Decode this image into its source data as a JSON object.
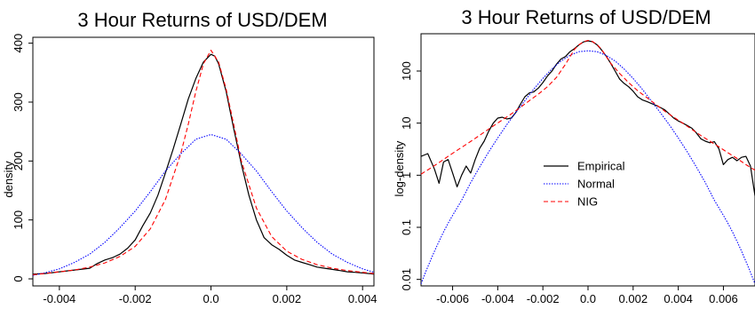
{
  "colors": {
    "empirical": "#000000",
    "normal": "#0000ff",
    "nig": "#ff0000"
  },
  "chart_data": [
    {
      "type": "line",
      "title": "3 Hour Returns of USD/DEM",
      "xlabel": "",
      "ylabel": "density",
      "xlim": [
        -0.0047,
        0.0043
      ],
      "ylim": [
        -12,
        410
      ],
      "x_ticks": [
        -0.004,
        -0.002,
        0.0,
        0.002,
        0.004
      ],
      "x_tick_labels": [
        "-0.004",
        "-0.002",
        "0.0",
        "0.002",
        "0.004"
      ],
      "y_ticks": [
        0,
        100,
        200,
        300,
        400
      ],
      "y_tick_labels": [
        "0",
        "100",
        "200",
        "300",
        "400"
      ],
      "grid": false,
      "legend": null,
      "series": [
        {
          "key": "empirical",
          "style": "solid",
          "x": [
            -0.0047,
            -0.0044,
            -0.004,
            -0.0036,
            -0.0032,
            -0.003,
            -0.0028,
            -0.0026,
            -0.0024,
            -0.0022,
            -0.002,
            -0.0018,
            -0.0016,
            -0.0014,
            -0.0012,
            -0.001,
            -0.0008,
            -0.0006,
            -0.0004,
            -0.0002,
            0.0,
            0.0001,
            0.0002,
            0.0004,
            0.0006,
            0.0008,
            0.001,
            0.0012,
            0.0014,
            0.0016,
            0.0018,
            0.002,
            0.0022,
            0.0024,
            0.0026,
            0.0028,
            0.003,
            0.0032,
            0.0034,
            0.0036,
            0.0038,
            0.004,
            0.0043
          ],
          "y": [
            8,
            9,
            12,
            15,
            18,
            26,
            32,
            36,
            42,
            52,
            66,
            90,
            112,
            142,
            180,
            220,
            262,
            305,
            340,
            368,
            381,
            378,
            365,
            318,
            255,
            195,
            142,
            100,
            70,
            58,
            50,
            40,
            32,
            28,
            24,
            20,
            18,
            16,
            14,
            12,
            11,
            10,
            8
          ]
        },
        {
          "key": "normal",
          "style": "dotted",
          "x": [
            -0.0047,
            -0.0044,
            -0.004,
            -0.0036,
            -0.0032,
            -0.0028,
            -0.0024,
            -0.002,
            -0.0016,
            -0.0012,
            -0.0008,
            -0.0004,
            0.0,
            0.0004,
            0.0008,
            0.0012,
            0.0016,
            0.002,
            0.0024,
            0.0028,
            0.0032,
            0.0036,
            0.004,
            0.0043
          ],
          "y": [
            6,
            10,
            17,
            28,
            42,
            62,
            87,
            115,
            148,
            183,
            212,
            237,
            245,
            237,
            212,
            183,
            148,
            115,
            87,
            62,
            42,
            28,
            17,
            11
          ]
        },
        {
          "key": "nig",
          "style": "dashed",
          "x": [
            -0.0047,
            -0.0044,
            -0.004,
            -0.0036,
            -0.0032,
            -0.0028,
            -0.0024,
            -0.002,
            -0.0016,
            -0.0012,
            -0.0008,
            -0.0006,
            -0.0004,
            -0.0002,
            0.0,
            0.0002,
            0.0004,
            0.0006,
            0.0008,
            0.0012,
            0.0016,
            0.002,
            0.0024,
            0.0028,
            0.0032,
            0.0036,
            0.004,
            0.0043
          ],
          "y": [
            7,
            9,
            12,
            15,
            20,
            27,
            38,
            55,
            85,
            135,
            212,
            262,
            318,
            365,
            388,
            368,
            322,
            262,
            200,
            120,
            72,
            47,
            33,
            24,
            18,
            14,
            11,
            9
          ]
        }
      ]
    },
    {
      "type": "line",
      "title": "3 Hour Returns of USD/DEM",
      "xlabel": "",
      "ylabel": "log-density",
      "y_scale": "log",
      "xlim": [
        -0.0074,
        0.0074
      ],
      "ylim": [
        0.0075,
        520
      ],
      "x_ticks": [
        -0.006,
        -0.004,
        -0.002,
        0.0,
        0.002,
        0.004,
        0.006
      ],
      "x_tick_labels": [
        "-0.006",
        "-0.004",
        "-0.002",
        "0.0",
        "0.002",
        "0.004",
        "0.006"
      ],
      "y_ticks": [
        0.01,
        0.1,
        1,
        10,
        100
      ],
      "y_tick_labels": [
        "0.01",
        "0.1",
        "1",
        "10",
        "100"
      ],
      "grid": false,
      "legend": "center-right",
      "series": [
        {
          "key": "empirical",
          "name": "Empirical",
          "style": "solid",
          "x": [
            -0.0074,
            -0.0071,
            -0.0068,
            -0.0066,
            -0.0064,
            -0.0062,
            -0.006,
            -0.0058,
            -0.0056,
            -0.0054,
            -0.0052,
            -0.005,
            -0.0048,
            -0.0046,
            -0.0044,
            -0.0042,
            -0.004,
            -0.0038,
            -0.0036,
            -0.0034,
            -0.0032,
            -0.003,
            -0.0028,
            -0.0026,
            -0.0024,
            -0.0022,
            -0.002,
            -0.0018,
            -0.0016,
            -0.0014,
            -0.0012,
            -0.001,
            -0.0008,
            -0.0006,
            -0.0004,
            -0.0002,
            0.0,
            0.0002,
            0.0004,
            0.0006,
            0.0008,
            0.001,
            0.0012,
            0.0014,
            0.0016,
            0.0018,
            0.002,
            0.0022,
            0.0024,
            0.0026,
            0.0028,
            0.003,
            0.0032,
            0.0034,
            0.0036,
            0.0038,
            0.004,
            0.0042,
            0.0044,
            0.0046,
            0.0048,
            0.005,
            0.0052,
            0.0054,
            0.0056,
            0.0058,
            0.006,
            0.0062,
            0.0064,
            0.0066,
            0.0068,
            0.007,
            0.0072,
            0.0074
          ],
          "y": [
            2.3,
            2.6,
            1.3,
            0.7,
            1.8,
            2.0,
            1.1,
            0.6,
            1.0,
            1.5,
            1.1,
            2.0,
            3.3,
            4.5,
            7.0,
            10.0,
            12.5,
            13.0,
            12.0,
            12.5,
            16.0,
            23.0,
            32.0,
            38.0,
            40.0,
            47.0,
            60.0,
            80.0,
            100.0,
            135.0,
            170.0,
            190.0,
            235.0,
            270.0,
            318.0,
            362.0,
            380.0,
            365.0,
            318.0,
            255.0,
            195.0,
            142.0,
            100.0,
            70.0,
            58.0,
            50.0,
            41.0,
            32.0,
            28.0,
            26.0,
            24.0,
            22.0,
            20.0,
            18.0,
            15.0,
            12.5,
            11.0,
            10.0,
            9.0,
            8.0,
            6.5,
            5.0,
            4.5,
            4.2,
            4.4,
            3.2,
            1.6,
            2.0,
            2.2,
            1.9,
            2.2,
            2.3,
            1.5,
            0.4
          ]
        },
        {
          "key": "normal",
          "name": "Normal",
          "style": "dotted",
          "x": [
            -0.0074,
            -0.0072,
            -0.007,
            -0.0068,
            -0.0066,
            -0.0064,
            -0.0062,
            -0.006,
            -0.0056,
            -0.0052,
            -0.0048,
            -0.0044,
            -0.004,
            -0.0036,
            -0.0032,
            -0.0028,
            -0.0024,
            -0.002,
            -0.0016,
            -0.0012,
            -0.0008,
            -0.0004,
            0.0,
            0.0004,
            0.0008,
            0.0012,
            0.0016,
            0.002,
            0.0024,
            0.0028,
            0.0032,
            0.0036,
            0.004,
            0.0044,
            0.0048,
            0.0052,
            0.0056,
            0.006,
            0.0062,
            0.0064,
            0.0066,
            0.0068,
            0.007,
            0.0072,
            0.0074
          ],
          "y": [
            0.0082,
            0.0137,
            0.0222,
            0.035,
            0.054,
            0.082,
            0.12,
            0.17,
            0.33,
            0.72,
            1.45,
            2.8,
            5.2,
            9.3,
            16.0,
            27.0,
            45.0,
            72.0,
            110.0,
            156.0,
            200.0,
            235.0,
            245.0,
            235.0,
            200.0,
            156.0,
            110.0,
            72.0,
            45.0,
            27.0,
            16.0,
            9.3,
            5.2,
            2.8,
            1.45,
            0.72,
            0.33,
            0.17,
            0.12,
            0.082,
            0.054,
            0.035,
            0.0222,
            0.0137,
            0.0082
          ]
        },
        {
          "key": "nig",
          "name": "NIG",
          "style": "dashed",
          "x": [
            -0.0074,
            -0.007,
            -0.0066,
            -0.0062,
            -0.0058,
            -0.0054,
            -0.005,
            -0.0046,
            -0.0042,
            -0.0038,
            -0.0034,
            -0.003,
            -0.0026,
            -0.0022,
            -0.0018,
            -0.0014,
            -0.001,
            -0.0006,
            -0.0004,
            -0.0002,
            0.0,
            0.0002,
            0.0004,
            0.0006,
            0.001,
            0.0014,
            0.0018,
            0.0022,
            0.0026,
            0.003,
            0.0034,
            0.0038,
            0.0042,
            0.0046,
            0.005,
            0.0054,
            0.0058,
            0.0062,
            0.0066,
            0.007,
            0.0074
          ],
          "y": [
            1.05,
            1.35,
            1.75,
            2.3,
            3.0,
            3.9,
            5.1,
            6.7,
            8.8,
            11.5,
            15.0,
            20.0,
            27.0,
            36.0,
            50.0,
            75.0,
            135.0,
            262.0,
            318.0,
            365.0,
            388.0,
            368.0,
            322.0,
            262.0,
            142.0,
            90.0,
            60.0,
            42.0,
            31.0,
            23.0,
            17.0,
            13.0,
            10.0,
            7.6,
            5.8,
            4.5,
            3.5,
            2.7,
            2.1,
            1.6,
            1.25
          ]
        }
      ]
    }
  ]
}
